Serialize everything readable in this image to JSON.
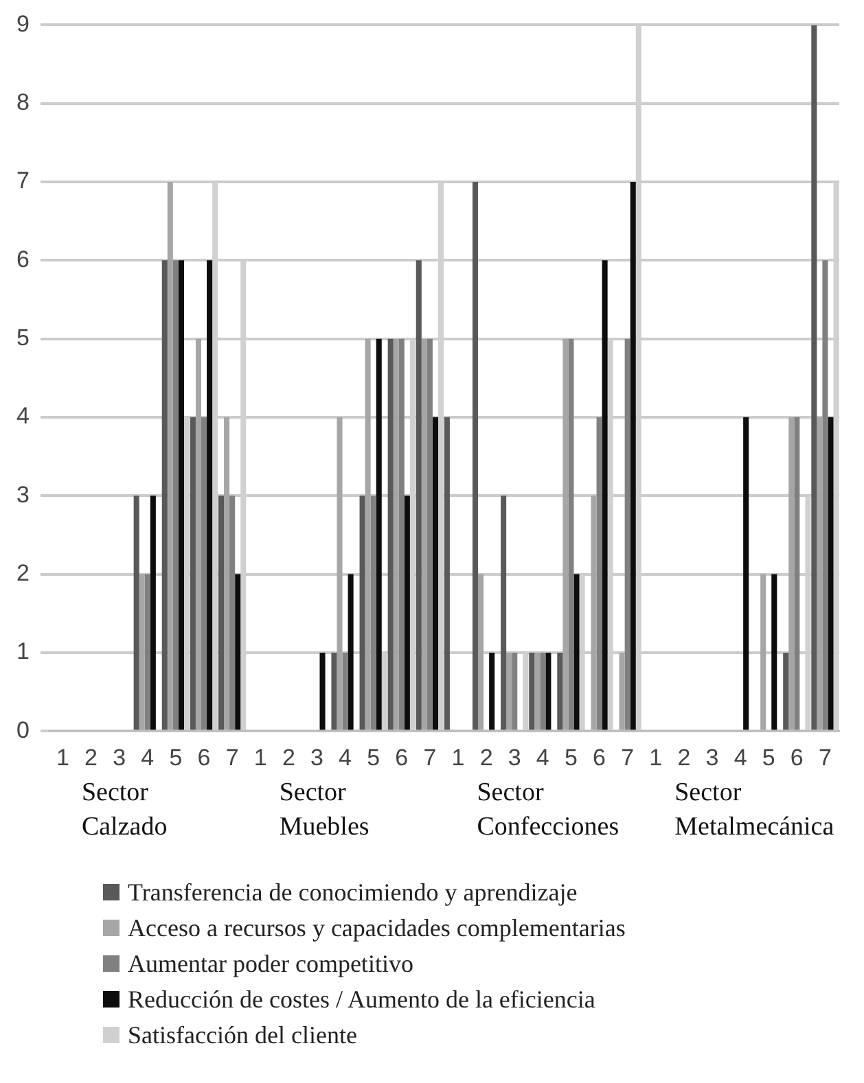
{
  "chart_data": {
    "type": "bar",
    "categories": [
      "1",
      "2",
      "3",
      "4",
      "5",
      "6",
      "7",
      "1",
      "2",
      "3",
      "4",
      "5",
      "6",
      "7",
      "1",
      "2",
      "3",
      "4",
      "5",
      "6",
      "7",
      "1",
      "2",
      "3",
      "4",
      "5",
      "6",
      "7"
    ],
    "series": [
      {
        "name": "Transferencia de conocimiendo y aprendizaje",
        "color": "#595959",
        "values": [
          0,
          0,
          0,
          3,
          6,
          4,
          3,
          0,
          0,
          0,
          1,
          3,
          5,
          6,
          4,
          7,
          3,
          1,
          1,
          0,
          0,
          0,
          0,
          0,
          0,
          0,
          1,
          9
        ]
      },
      {
        "name": "Acceso a recursos y capacidades complementarias",
        "color": "#a6a6a6",
        "values": [
          0,
          0,
          0,
          2,
          7,
          5,
          4,
          0,
          0,
          0,
          4,
          5,
          5,
          5,
          0,
          2,
          1,
          1,
          5,
          3,
          1,
          0,
          0,
          0,
          0,
          2,
          4,
          4
        ]
      },
      {
        "name": "Aumentar poder competitivo",
        "color": "#808080",
        "values": [
          0,
          0,
          0,
          2,
          6,
          4,
          3,
          0,
          0,
          0,
          1,
          3,
          5,
          5,
          0,
          0,
          1,
          1,
          5,
          4,
          5,
          0,
          0,
          0,
          0,
          0,
          4,
          6
        ]
      },
      {
        "name": "Reducción de costes / Aumento de la eficiencia",
        "color": "#0d0d0d",
        "values": [
          0,
          0,
          0,
          3,
          6,
          6,
          2,
          0,
          0,
          1,
          2,
          5,
          3,
          4,
          0,
          1,
          0,
          1,
          2,
          6,
          7,
          0,
          0,
          0,
          4,
          2,
          0,
          4
        ]
      },
      {
        "name": "Satisfacción del cliente",
        "color": "#d0d0d0",
        "values": [
          0,
          0,
          0,
          0,
          4,
          7,
          6,
          0,
          0,
          0,
          0,
          1,
          5,
          7,
          0,
          0,
          1,
          0,
          2,
          5,
          9,
          0,
          0,
          0,
          0,
          0,
          3,
          7
        ]
      }
    ],
    "ylim": [
      0,
      9
    ],
    "yticks": [
      0,
      1,
      2,
      3,
      4,
      5,
      6,
      7,
      8,
      9
    ],
    "grid": "y",
    "legend": "bottom",
    "annotations": [
      "Sector Calzado",
      "Sector Muebles",
      "Sector Confecciones",
      "Sector Metalmecánica"
    ]
  }
}
